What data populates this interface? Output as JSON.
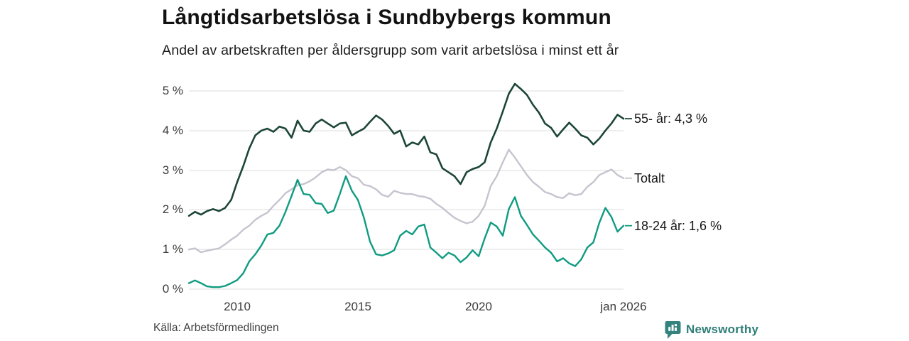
{
  "header": {
    "title": "Långtidsarbetslösa i Sundbybergs kommun",
    "subtitle": "Andel av arbetskraften per åldersgrupp som varit arbetslösa i minst ett år"
  },
  "footer": {
    "source": "Källa: Arbetsförmedlingen",
    "brand_name": "Newsworthy",
    "brand_color": "#35837e",
    "brand_text_color": "#2e7d76",
    "brand_icon": "bar-chart-speech-bubble-icon"
  },
  "chart_data": {
    "type": "line",
    "title": "Långtidsarbetslösa i Sundbybergs kommun",
    "subtitle": "Andel av arbetskraften per åldersgrupp som varit arbetslösa i minst ett år",
    "unit": "%",
    "grid": "horizontal",
    "legend_position": "right-of-line-ends",
    "xlim": [
      2008.0,
      2026.0
    ],
    "ylim": [
      0,
      5.3
    ],
    "x_start": 2008.0,
    "x_step": 0.25,
    "gridline_color": "#e3e3e5",
    "yticks": [
      {
        "value": 5,
        "label": "5 %"
      },
      {
        "value": 4,
        "label": "4 %"
      },
      {
        "value": 3,
        "label": "3 %"
      },
      {
        "value": 2,
        "label": "2 %"
      },
      {
        "value": 1,
        "label": "1 %"
      },
      {
        "value": 0,
        "label": "0 %"
      }
    ],
    "xticks": [
      {
        "value": 2010,
        "label": "2010"
      },
      {
        "value": 2015,
        "label": "2015"
      },
      {
        "value": 2020,
        "label": "2020"
      },
      {
        "value": 2026,
        "label": "jan 2026"
      }
    ],
    "series": [
      {
        "name": "Totalt",
        "end_label": "Totalt",
        "color": "#c6c4ce",
        "stroke_width": 2.4,
        "values": [
          1.0,
          1.03,
          0.93,
          0.97,
          1.0,
          1.03,
          1.13,
          1.25,
          1.35,
          1.5,
          1.6,
          1.75,
          1.85,
          1.93,
          2.1,
          2.25,
          2.42,
          2.52,
          2.62,
          2.65,
          2.72,
          2.82,
          2.95,
          3.02,
          3.0,
          3.08,
          3.0,
          2.85,
          2.8,
          2.63,
          2.6,
          2.52,
          2.38,
          2.33,
          2.48,
          2.43,
          2.4,
          2.4,
          2.35,
          2.33,
          2.28,
          2.15,
          2.05,
          1.92,
          1.8,
          1.72,
          1.66,
          1.7,
          1.85,
          2.1,
          2.6,
          2.85,
          3.2,
          3.52,
          3.32,
          3.1,
          2.88,
          2.7,
          2.58,
          2.45,
          2.4,
          2.32,
          2.3,
          2.42,
          2.37,
          2.4,
          2.58,
          2.7,
          2.88,
          2.95,
          3.02,
          2.88,
          2.8
        ]
      },
      {
        "name": "18-24 år",
        "end_label": "18-24 år: 1,6 %",
        "color": "#109b81",
        "stroke_width": 2.4,
        "values": [
          0.15,
          0.22,
          0.15,
          0.07,
          0.05,
          0.05,
          0.08,
          0.15,
          0.23,
          0.4,
          0.7,
          0.88,
          1.1,
          1.38,
          1.42,
          1.6,
          1.95,
          2.35,
          2.76,
          2.4,
          2.38,
          2.17,
          2.15,
          1.92,
          1.98,
          2.4,
          2.85,
          2.48,
          2.25,
          1.8,
          1.2,
          0.88,
          0.85,
          0.9,
          0.98,
          1.35,
          1.47,
          1.38,
          1.58,
          1.63,
          1.05,
          0.92,
          0.78,
          0.92,
          0.85,
          0.68,
          0.8,
          0.98,
          0.83,
          1.28,
          1.68,
          1.58,
          1.35,
          2.02,
          2.32,
          1.85,
          1.62,
          1.38,
          1.22,
          1.05,
          0.92,
          0.7,
          0.78,
          0.65,
          0.58,
          0.75,
          1.05,
          1.18,
          1.68,
          2.05,
          1.82,
          1.45,
          1.6
        ]
      },
      {
        "name": "55- år",
        "end_label": "55- år: 4,3 %",
        "color": "#1d4636",
        "stroke_width": 2.6,
        "values": [
          1.85,
          1.95,
          1.88,
          1.97,
          2.02,
          1.97,
          2.05,
          2.25,
          2.7,
          3.1,
          3.55,
          3.88,
          4.0,
          4.05,
          3.97,
          4.1,
          4.05,
          3.82,
          4.25,
          4.0,
          3.97,
          4.18,
          4.28,
          4.18,
          4.08,
          4.18,
          4.2,
          3.88,
          3.97,
          4.05,
          4.22,
          4.38,
          4.28,
          4.12,
          3.92,
          4.0,
          3.6,
          3.7,
          3.65,
          3.85,
          3.45,
          3.4,
          3.05,
          2.95,
          2.85,
          2.65,
          2.95,
          3.03,
          3.08,
          3.2,
          3.7,
          4.05,
          4.48,
          4.93,
          5.18,
          5.05,
          4.9,
          4.65,
          4.45,
          4.18,
          4.07,
          3.85,
          4.03,
          4.2,
          4.05,
          3.88,
          3.82,
          3.65,
          3.8,
          4.0,
          4.18,
          4.4,
          4.3
        ]
      }
    ]
  }
}
